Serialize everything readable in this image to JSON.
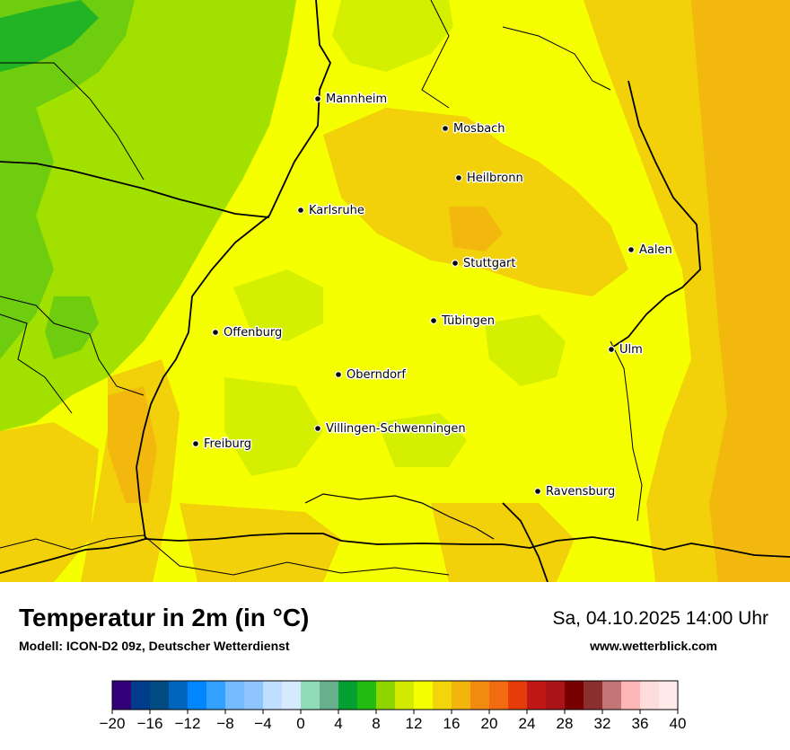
{
  "map": {
    "cities": [
      {
        "name": "Mannheim"
      },
      {
        "name": "Mosbach"
      },
      {
        "name": "Heilbronn"
      },
      {
        "name": "Karlsruhe"
      },
      {
        "name": "Aalen"
      },
      {
        "name": "Stuttgart"
      },
      {
        "name": "Tübingen"
      },
      {
        "name": "Offenburg"
      },
      {
        "name": "Ulm"
      },
      {
        "name": "Oberndorf"
      },
      {
        "name": "Villingen-Schwenningen"
      },
      {
        "name": "Freiburg"
      },
      {
        "name": "Ravensburg"
      }
    ],
    "colors": {
      "base": "#f5ff00",
      "warm": "#f2d00a",
      "warmer": "#f2b80e",
      "cool": "#d4f000",
      "cooler": "#a2e000",
      "green": "#6fcd10",
      "dark_green": "#22b424",
      "border": "#000000"
    }
  },
  "header": {
    "title": "Temperatur in 2m (in °C)",
    "subtitle": "Modell: ICON-D2 09z, Deutscher Wetterdienst",
    "datetime": "Sa, 04.10.2025 14:00 Uhr",
    "website": "www.wetterblick.com"
  },
  "legend": {
    "min": -20,
    "max": 40,
    "step": 2,
    "tick_labels": [
      "−20",
      "−16",
      "−12",
      "−8",
      "−4",
      "0",
      "4",
      "8",
      "12",
      "16",
      "20",
      "24",
      "28",
      "32",
      "36",
      "40"
    ],
    "colors": [
      "#34007a",
      "#003c8c",
      "#004b82",
      "#0066bd",
      "#0087ff",
      "#34a1ff",
      "#74bcff",
      "#8fc5ff",
      "#bedfff",
      "#d5e9ff",
      "#90dbb8",
      "#68b08c",
      "#04a031",
      "#22bb11",
      "#8ed500",
      "#d2ea00",
      "#f5ff00",
      "#f2d50a",
      "#f2b50e",
      "#f28a0f",
      "#f26b13",
      "#e63c0a",
      "#bf1616",
      "#aa1318",
      "#780000",
      "#8c2f2f",
      "#c47575",
      "#ffb6b6",
      "#ffdcdc",
      "#ffeaea"
    ]
  }
}
